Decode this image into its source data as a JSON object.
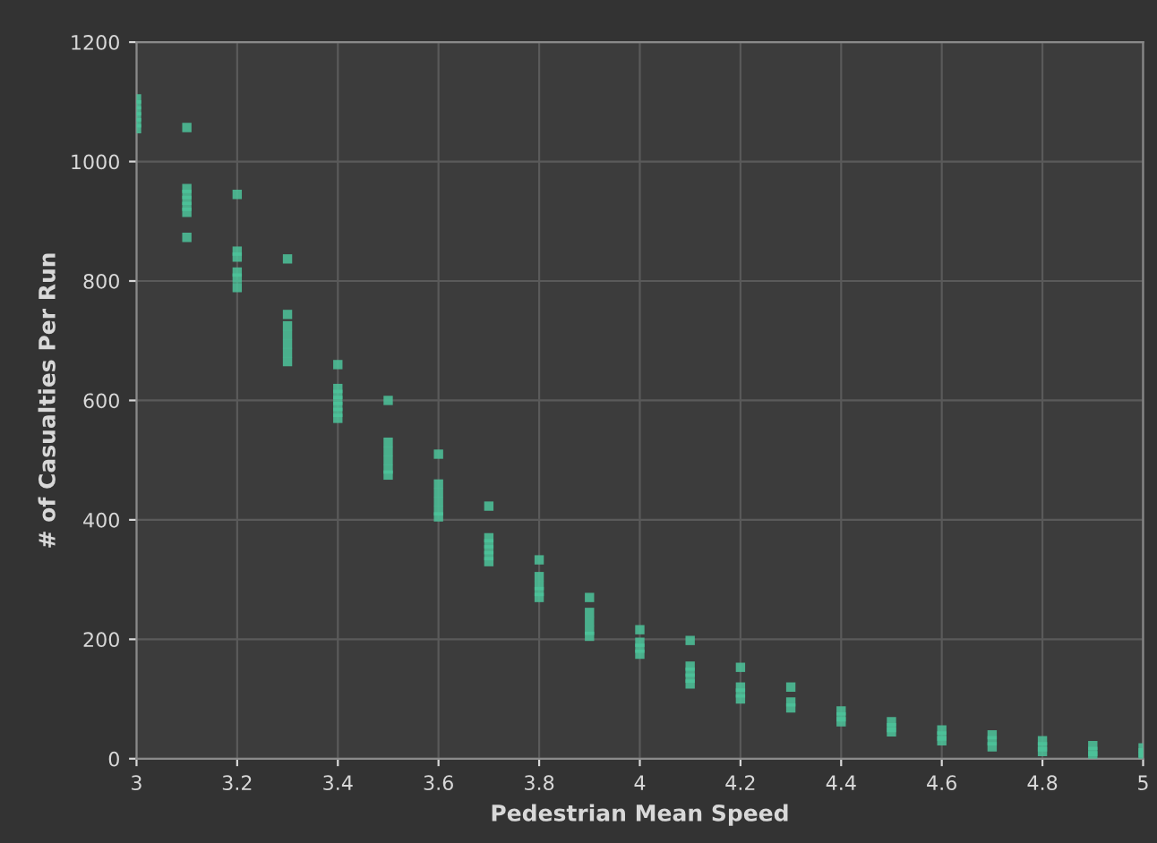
{
  "chart_data": {
    "type": "scatter",
    "xlabel": "Pedestrian Mean Speed",
    "ylabel": "# of Casualties Per Run",
    "xlim": [
      3,
      5
    ],
    "ylim": [
      0,
      1200
    ],
    "xticks": [
      3,
      3.2,
      3.4,
      3.6,
      3.8,
      4,
      4.2,
      4.4,
      4.6,
      4.8,
      5
    ],
    "yticks": [
      0,
      200,
      400,
      600,
      800,
      1000,
      1200
    ],
    "grid": true,
    "marker": "square",
    "series": [
      {
        "color": "#4cc39a",
        "x": [
          3,
          3,
          3,
          3,
          3,
          3,
          3.1,
          3.1,
          3.1,
          3.1,
          3.1,
          3.1,
          3.1,
          3.2,
          3.2,
          3.2,
          3.2,
          3.2,
          3.2,
          3.3,
          3.3,
          3.3,
          3.3,
          3.3,
          3.3,
          3.3,
          3.4,
          3.4,
          3.4,
          3.4,
          3.4,
          3.4,
          3.4,
          3.5,
          3.5,
          3.5,
          3.5,
          3.5,
          3.5,
          3.6,
          3.6,
          3.6,
          3.6,
          3.6,
          3.6,
          3.7,
          3.7,
          3.7,
          3.7,
          3.7,
          3.7,
          3.8,
          3.8,
          3.8,
          3.8,
          3.8,
          3.9,
          3.9,
          3.9,
          3.9,
          3.9,
          4,
          4,
          4,
          4,
          4.1,
          4.1,
          4.1,
          4.1,
          4.1,
          4.2,
          4.2,
          4.2,
          4.2,
          4.3,
          4.3,
          4.3,
          4.4,
          4.4,
          4.4,
          4.5,
          4.5,
          4.5,
          4.6,
          4.6,
          4.6,
          4.7,
          4.7,
          4.7,
          4.8,
          4.8,
          4.8,
          4.9,
          4.9,
          4.9,
          5,
          5,
          5
        ],
        "values": [
          1055,
          1065,
          1075,
          1085,
          1095,
          1105,
          1057,
          955,
          945,
          935,
          925,
          915,
          873,
          945,
          850,
          840,
          815,
          805,
          789,
          837,
          744,
          725,
          710,
          695,
          680,
          665,
          660,
          620,
          610,
          600,
          590,
          580,
          570,
          600,
          530,
          515,
          500,
          485,
          475,
          510,
          460,
          445,
          430,
          415,
          405,
          423,
          370,
          360,
          350,
          340,
          330,
          333,
          305,
          290,
          280,
          270,
          270,
          245,
          230,
          215,
          205,
          216,
          195,
          185,
          175,
          198,
          155,
          145,
          135,
          125,
          153,
          120,
          110,
          100,
          120,
          95,
          85,
          80,
          70,
          62,
          62,
          52,
          45,
          48,
          38,
          30,
          40,
          30,
          20,
          30,
          20,
          12,
          22,
          12,
          5,
          18,
          10,
          3
        ]
      }
    ]
  }
}
